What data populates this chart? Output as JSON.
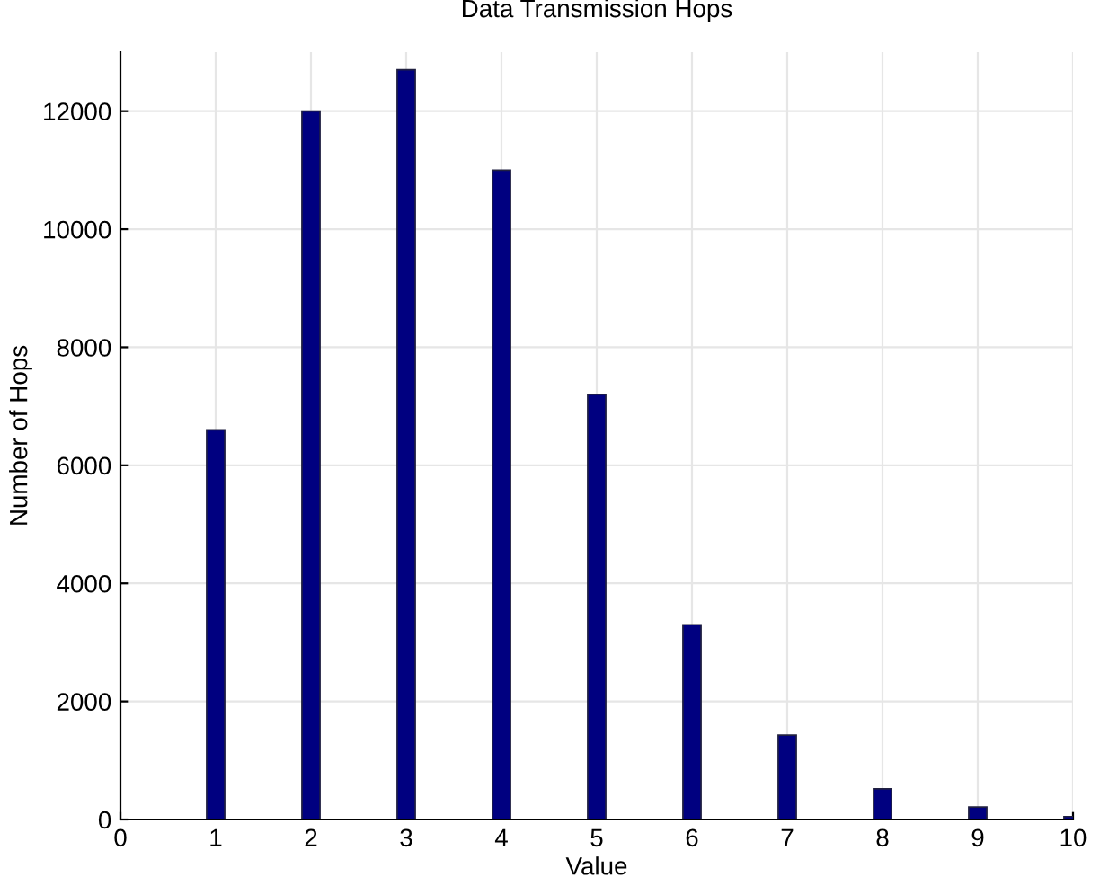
{
  "chart_data": {
    "type": "bar",
    "title": "Data Transmission Hops",
    "xlabel": "Value",
    "ylabel": "Number of Hops",
    "x": [
      1,
      2,
      3,
      4,
      5,
      6,
      7,
      8,
      9,
      10
    ],
    "values": [
      6600,
      12000,
      12700,
      11000,
      7200,
      3300,
      1430,
      520,
      210,
      50
    ],
    "color": "#000080",
    "xlim": [
      0,
      10
    ],
    "xticks": [
      0,
      1,
      2,
      3,
      4,
      5,
      6,
      7,
      8,
      9,
      10
    ],
    "ylim": [
      0,
      13000
    ],
    "yticks": [
      0,
      2000,
      4000,
      6000,
      8000,
      10000,
      12000
    ],
    "grid": true
  }
}
